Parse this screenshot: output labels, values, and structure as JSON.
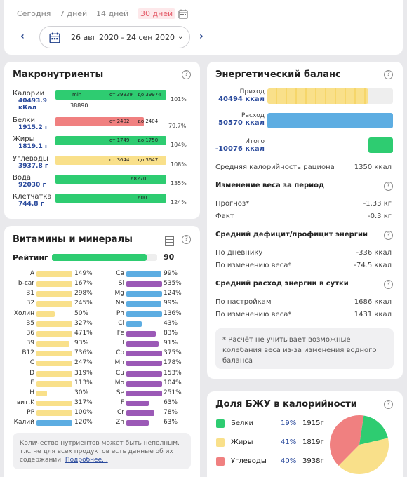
{
  "periods": {
    "today": "Сегодня",
    "week": "7 дней",
    "twoweeks": "14 дней",
    "month": "30 дней"
  },
  "date_range": "26 авг 2020 - 24 сен 2020",
  "colors": {
    "green": "#2ecc71",
    "red": "#f08080",
    "yellow": "#f9e08a",
    "blue": "#5dade2",
    "purple": "#9b59b6",
    "accent": "#e45d6a",
    "navy": "#2a4a9c"
  },
  "macros": {
    "title": "Макронутриенты",
    "items": [
      {
        "name": "Калории",
        "value": "40493.9",
        "unit": "кКал",
        "pct": "101%",
        "fraction": 1.01,
        "range_from": "от 39939",
        "range_to": "до 39974",
        "min_label": "min",
        "extra": "38890",
        "color": "green"
      },
      {
        "name": "Белки",
        "value": "1915.2 г",
        "pct": "79.7%",
        "fraction": 0.797,
        "range_from": "от 2402",
        "range_to": "до 2404",
        "color": "red"
      },
      {
        "name": "Жиры",
        "value": "1819.1 г",
        "pct": "104%",
        "fraction": 1.04,
        "range_from": "от 1749",
        "range_to": "до 1750",
        "color": "green"
      },
      {
        "name": "Углеводы",
        "value": "3937.8 г",
        "pct": "108%",
        "fraction": 1.08,
        "range_from": "от 3644",
        "range_to": "до 3647",
        "color": "yellow"
      },
      {
        "name": "Вода",
        "value": "92030 г",
        "pct": "135%",
        "fraction": 1.35,
        "inner": "68270",
        "color": "green"
      },
      {
        "name": "Клетчатка",
        "value": "744.8 г",
        "pct": "124%",
        "fraction": 1.24,
        "inner": "600",
        "color": "green"
      }
    ]
  },
  "vitamins": {
    "title": "Витамины и минералы",
    "rating_label": "Рейтинг",
    "rating_value": "90",
    "rating_fraction": 0.9,
    "left": [
      {
        "name": "A",
        "pct": "149%",
        "color": "yellow"
      },
      {
        "name": "b-car",
        "pct": "167%",
        "color": "yellow"
      },
      {
        "name": "B1",
        "pct": "298%",
        "color": "yellow"
      },
      {
        "name": "B2",
        "pct": "245%",
        "color": "yellow"
      },
      {
        "name": "Холин",
        "pct": "50%",
        "color": "yellow"
      },
      {
        "name": "B5",
        "pct": "327%",
        "color": "yellow"
      },
      {
        "name": "B6",
        "pct": "471%",
        "color": "yellow"
      },
      {
        "name": "B9",
        "pct": "93%",
        "color": "yellow"
      },
      {
        "name": "B12",
        "pct": "736%",
        "color": "yellow"
      },
      {
        "name": "C",
        "pct": "247%",
        "color": "yellow"
      },
      {
        "name": "D",
        "pct": "319%",
        "color": "yellow"
      },
      {
        "name": "E",
        "pct": "113%",
        "color": "yellow"
      },
      {
        "name": "H",
        "pct": "30%",
        "color": "yellow"
      },
      {
        "name": "вит.K",
        "pct": "317%",
        "color": "yellow"
      },
      {
        "name": "PP",
        "pct": "100%",
        "color": "yellow"
      },
      {
        "name": "Калий",
        "pct": "120%",
        "color": "blue"
      }
    ],
    "right": [
      {
        "name": "Ca",
        "pct": "99%",
        "color": "blue"
      },
      {
        "name": "Si",
        "pct": "535%",
        "color": "purple"
      },
      {
        "name": "Mg",
        "pct": "124%",
        "color": "blue"
      },
      {
        "name": "Na",
        "pct": "99%",
        "color": "blue"
      },
      {
        "name": "Ph",
        "pct": "136%",
        "color": "blue"
      },
      {
        "name": "Cl",
        "pct": "43%",
        "color": "blue"
      },
      {
        "name": "Fe",
        "pct": "83%",
        "color": "purple"
      },
      {
        "name": "I",
        "pct": "91%",
        "color": "purple"
      },
      {
        "name": "Co",
        "pct": "375%",
        "color": "purple"
      },
      {
        "name": "Mn",
        "pct": "178%",
        "color": "purple"
      },
      {
        "name": "Cu",
        "pct": "153%",
        "color": "purple"
      },
      {
        "name": "Mo",
        "pct": "104%",
        "color": "purple"
      },
      {
        "name": "Se",
        "pct": "251%",
        "color": "purple"
      },
      {
        "name": "F",
        "pct": "63%",
        "color": "purple"
      },
      {
        "name": "Cr",
        "pct": "78%",
        "color": "purple"
      },
      {
        "name": "Zn",
        "pct": "63%",
        "color": "purple"
      }
    ],
    "note": "Количество нутриентов может быть неполным, т.к. не для всех продуктов есть данные об их содержании.",
    "note_link": "Подробнее..."
  },
  "energy": {
    "title": "Энергетический баланс",
    "income_label": "Приход",
    "income_value": "40494 ккал",
    "expense_label": "Расход",
    "expense_value": "50570 ккал",
    "total_label": "Итого",
    "total_value": "-10076 ккал",
    "avg_cal_label": "Средняя калорийность рациона",
    "avg_cal_value": "1350 ккал",
    "weight_title": "Изменение веса за период",
    "forecast_label": "Прогноз*",
    "forecast_value": "-1.33 кг",
    "fact_label": "Факт",
    "fact_value": "-0.3 кг",
    "deficit_title": "Средний дефицит/профицит энергии",
    "by_diary_label": "По дневнику",
    "by_diary_value": "-336 ккал",
    "by_weight_label": "По изменению веса*",
    "by_weight_value": "-74.5 ккал",
    "expense_title": "Средний расход энергии в сутки",
    "by_settings_label": "По настройкам",
    "by_settings_value": "1686 ккал",
    "by_weight2_label": "По изменению веса*",
    "by_weight2_value": "1431 ккал",
    "footnote": "* Расчёт не учитывает возможные колебания веса из-за изменения водного баланса"
  },
  "bju": {
    "title": "Доля БЖУ в калорийности",
    "items": [
      {
        "name": "Белки",
        "pct": "19%",
        "grams": "1915г",
        "fraction": 0.19,
        "color": "green"
      },
      {
        "name": "Жиры",
        "pct": "41%",
        "grams": "1819г",
        "fraction": 0.41,
        "color": "yellow"
      },
      {
        "name": "Углеводы",
        "pct": "40%",
        "grams": "3938г",
        "fraction": 0.4,
        "color": "red"
      }
    ]
  }
}
